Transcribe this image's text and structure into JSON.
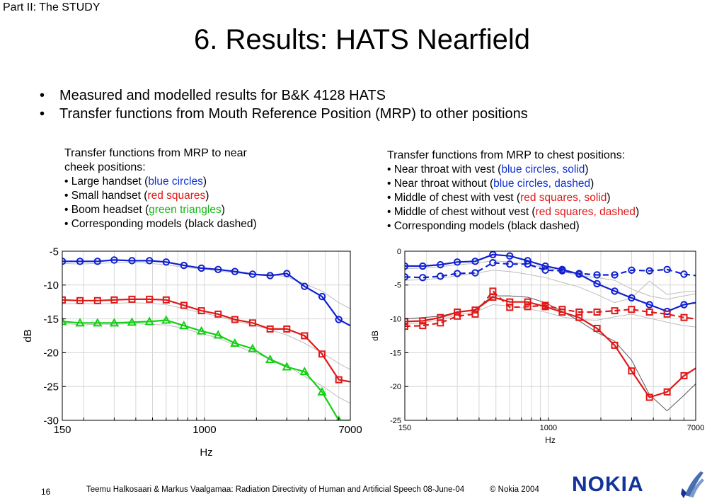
{
  "header": {
    "part_label": "Part II: The STUDY",
    "title": "6. Results: HATS Nearfield"
  },
  "bullets": [
    "Measured and modelled results for B&K 4128 HATS",
    "Transfer functions from Mouth Reference Position (MRP) to other positions"
  ],
  "left_caption": {
    "line1": "Transfer functions from MRP to near",
    "line2": "cheek positions:",
    "items": [
      {
        "prefix": "• Large handset (",
        "colored": "blue circles",
        "suffix": ")",
        "color": "#1030d0"
      },
      {
        "prefix": "• Small handset (",
        "colored": "red squares",
        "suffix": ")",
        "color": "#e01818"
      },
      {
        "prefix": "• Boom headset (",
        "colored": "green triangles",
        "suffix": ")",
        "color": "#12b812"
      },
      {
        "prefix": "• Corresponding models (black dashed)",
        "colored": "",
        "suffix": "",
        "color": "#000000"
      }
    ]
  },
  "right_caption": {
    "line1": "Transfer functions from MRP to chest positions:",
    "items": [
      {
        "prefix": "• Near throat with vest (",
        "colored": "blue circles, solid",
        "suffix": ")",
        "color": "#1030d0"
      },
      {
        "prefix": "• Near throat without (",
        "colored": "blue circles, dashed",
        "suffix": ")",
        "color": "#1030d0"
      },
      {
        "prefix": "• Middle of chest with vest (",
        "colored": "red squares, solid",
        "suffix": ")",
        "color": "#e01818"
      },
      {
        "prefix": "• Middle of chest without vest (",
        "colored": "red squares, dashed",
        "suffix": ")",
        "color": "#e01818"
      },
      {
        "prefix": "• Corresponding models (black dashed)",
        "colored": "",
        "suffix": "",
        "color": "#000000"
      }
    ]
  },
  "chart_data": [
    {
      "type": "line",
      "xscale": "log",
      "xlim": [
        150,
        7000
      ],
      "ylim": [
        -30,
        -5
      ],
      "xticks": [
        150,
        1000,
        7000
      ],
      "yticks": [
        -5,
        -10,
        -15,
        -20,
        -25,
        -30
      ],
      "xlabel": "Hz",
      "ylabel": "dB",
      "grid": true,
      "x": [
        150,
        190,
        240,
        300,
        380,
        480,
        600,
        760,
        960,
        1200,
        1500,
        1900,
        2400,
        3000,
        3800,
        4800,
        6000,
        7000
      ],
      "series": [
        {
          "color": "#1020d0",
          "marker": "circle",
          "style": "solid",
          "values": [
            -6.5,
            -6.5,
            -6.5,
            -6.3,
            -6.4,
            -6.4,
            -6.6,
            -7.1,
            -7.5,
            -7.7,
            -8.0,
            -8.4,
            -8.6,
            -8.3,
            -10.2,
            -11.7,
            -15.1,
            -16.0
          ]
        },
        {
          "color": "#e01818",
          "marker": "square",
          "style": "solid",
          "values": [
            -12.2,
            -12.3,
            -12.3,
            -12.2,
            -12.1,
            -12.1,
            -12.2,
            -13.0,
            -13.8,
            -14.3,
            -15.1,
            -15.6,
            -16.5,
            -16.5,
            -17.5,
            -20.2,
            -24.0,
            -24.3
          ]
        },
        {
          "color": "#12d012",
          "marker": "triangle",
          "style": "solid",
          "values": [
            -15.4,
            -15.6,
            -15.6,
            -15.6,
            -15.5,
            -15.4,
            -15.2,
            -16.0,
            -16.8,
            -17.4,
            -18.6,
            -19.4,
            -21.0,
            -22.1,
            -22.8,
            -25.8,
            -30.0,
            -30.0
          ]
        }
      ],
      "model_series": [
        {
          "color": "#bdbdbd",
          "values": [
            -6.8,
            -6.9,
            -6.8,
            -6.7,
            -6.6,
            -6.8,
            -7.0,
            -7.4,
            -7.6,
            -7.9,
            -8.2,
            -8.4,
            -8.4,
            -8.8,
            -9.8,
            -10.9,
            -12.6,
            -13.5
          ]
        },
        {
          "color": "#bdbdbd",
          "values": [
            -12.8,
            -12.7,
            -12.8,
            -12.7,
            -12.6,
            -12.7,
            -12.9,
            -13.5,
            -14.1,
            -14.6,
            -15.3,
            -15.9,
            -16.6,
            -17.4,
            -18.6,
            -20.0,
            -21.6,
            -22.5
          ]
        },
        {
          "color": "#bdbdbd",
          "values": [
            -15.6,
            -15.9,
            -15.8,
            -15.8,
            -15.7,
            -15.8,
            -15.9,
            -16.4,
            -17.2,
            -17.8,
            -18.9,
            -19.9,
            -20.9,
            -21.9,
            -23.5,
            -24.9,
            -26.6,
            -27.5
          ]
        }
      ]
    },
    {
      "type": "line",
      "xscale": "log",
      "xlim": [
        150,
        7000
      ],
      "ylim": [
        -25,
        0
      ],
      "xticks": [
        150,
        1000,
        7000
      ],
      "yticks": [
        0,
        -5,
        -10,
        -15,
        -20,
        -25
      ],
      "xlabel": "Hz",
      "ylabel": "dB",
      "grid": true,
      "x": [
        150,
        190,
        240,
        300,
        380,
        480,
        600,
        760,
        960,
        1200,
        1500,
        1900,
        2400,
        3000,
        3800,
        4800,
        6000,
        7000
      ],
      "series": [
        {
          "color": "#1020d0",
          "marker": "circle",
          "style": "solid",
          "values": [
            -2.2,
            -2.2,
            -2.0,
            -1.6,
            -1.5,
            -0.5,
            -0.7,
            -1.4,
            -2.2,
            -2.7,
            -3.4,
            -4.8,
            -5.9,
            -6.9,
            -7.9,
            -8.9,
            -7.9,
            -7.6
          ]
        },
        {
          "color": "#1020d0",
          "marker": "circle",
          "style": "dashed",
          "values": [
            -3.8,
            -3.9,
            -3.7,
            -3.3,
            -3.2,
            -1.7,
            -1.9,
            -1.9,
            -2.8,
            -2.9,
            -3.3,
            -3.5,
            -3.5,
            -2.8,
            -2.9,
            -2.7,
            -3.4,
            -3.6
          ]
        },
        {
          "color": "#e01818",
          "marker": "square",
          "style": "solid",
          "values": [
            -10.4,
            -10.3,
            -9.8,
            -9.0,
            -8.7,
            -6.8,
            -7.5,
            -7.5,
            -8.2,
            -9.0,
            -9.8,
            -11.4,
            -13.9,
            -17.7,
            -21.6,
            -20.8,
            -18.4,
            -17.3
          ]
        },
        {
          "color": "#e01818",
          "marker": "square",
          "style": "dashed",
          "values": [
            -11.1,
            -11.0,
            -10.6,
            -9.6,
            -9.3,
            -5.9,
            -8.3,
            -8.2,
            -8.0,
            -8.6,
            -9.0,
            -9.0,
            -8.8,
            -8.6,
            -9.0,
            -9.3,
            -9.8,
            -10.0
          ]
        }
      ],
      "model_series": [
        {
          "color": "#bdbdbd",
          "values": [
            -2.6,
            -2.5,
            -2.3,
            -2.0,
            -1.8,
            -1.4,
            -1.6,
            -1.9,
            -2.4,
            -3.0,
            -3.6,
            -3.9,
            -4.3,
            -5.6,
            -6.6,
            -7.1,
            -6.6,
            -6.3
          ]
        },
        {
          "color": "#bdbdbd",
          "values": [
            -4.3,
            -4.2,
            -4.0,
            -3.6,
            -3.3,
            -2.8,
            -3.0,
            -3.4,
            -3.9,
            -4.6,
            -5.3,
            -6.4,
            -7.6,
            -6.9,
            -4.4,
            -6.4,
            -6.0,
            -5.9
          ]
        },
        {
          "color": "#bdbdbd",
          "values": [
            -10.8,
            -10.6,
            -10.1,
            -9.4,
            -9.0,
            -7.9,
            -8.1,
            -8.5,
            -9.0,
            -9.7,
            -10.1,
            -10.2,
            -9.7,
            -9.3,
            -9.9,
            -10.5,
            -11.0,
            -11.2
          ]
        },
        {
          "color": "#555555",
          "values": [
            -10.0,
            -9.8,
            -9.6,
            -9.0,
            -8.6,
            -6.6,
            -6.6,
            -6.8,
            -7.6,
            -8.9,
            -10.3,
            -12.0,
            -13.3,
            -16.1,
            -21.2,
            -23.6,
            -21.3,
            -19.6
          ]
        }
      ]
    }
  ],
  "footer": {
    "page_number": "16",
    "citation": "Teemu Halkosaari & Markus Vaalgamaa: Radiation Directivity of Human and Artificial Speech  08-June-04",
    "copyright": "© Nokia 2004",
    "logo_text": "NOKIA"
  }
}
